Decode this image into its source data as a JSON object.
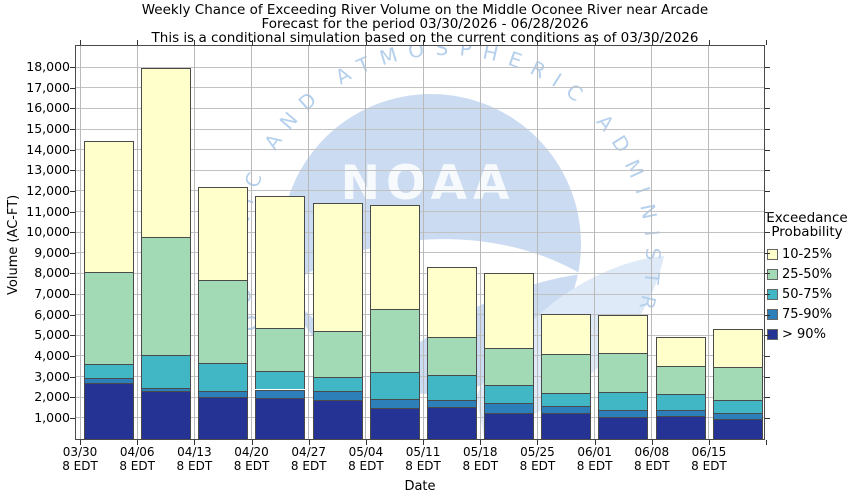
{
  "page": {
    "background": "#ffffff",
    "grid_color": "#c2c2c2",
    "frame_color": "#4a4a4a"
  },
  "chart_data": {
    "type": "stacked-bar",
    "title_lines": [
      "Weekly Chance of Exceeding River Volume on the Middle Oconee River near Arcade",
      "Forecast for the period 03/30/2026 - 06/28/2026",
      "This is a conditional simulation based on the current conditions as of 03/30/2026"
    ],
    "xlabel": "Date",
    "ylabel": "Volume (AC-FT)",
    "ylim": [
      0,
      19000
    ],
    "yticks": [
      1000,
      2000,
      3000,
      4000,
      5000,
      6000,
      7000,
      8000,
      9000,
      10000,
      11000,
      12000,
      13000,
      14000,
      15000,
      16000,
      17000,
      18000
    ],
    "ytick_labels": [
      "1,000",
      "2,000",
      "3,000",
      "4,000",
      "5,000",
      "6,000",
      "7,000",
      "8,000",
      "9,000",
      "10,000",
      "11,000",
      "12,000",
      "13,000",
      "14,000",
      "15,000",
      "16,000",
      "17,000",
      "18,000"
    ],
    "categories": [
      [
        "03/30",
        "8 EDT"
      ],
      [
        "04/06",
        "8 EDT"
      ],
      [
        "04/13",
        "8 EDT"
      ],
      [
        "04/20",
        "8 EDT"
      ],
      [
        "04/27",
        "8 EDT"
      ],
      [
        "05/04",
        "8 EDT"
      ],
      [
        "05/11",
        "8 EDT"
      ],
      [
        "05/18",
        "8 EDT"
      ],
      [
        "05/25",
        "8 EDT"
      ],
      [
        "06/01",
        "8 EDT"
      ],
      [
        "06/08",
        "8 EDT"
      ],
      [
        "06/15",
        "8 EDT"
      ]
    ],
    "bands": [
      {
        "name": "> 90%",
        "color": "#253494"
      },
      {
        "name": "75-90%",
        "color": "#2C7FB8"
      },
      {
        "name": "50-75%",
        "color": "#41B6C4"
      },
      {
        "name": "25-50%",
        "color": "#A1DAB4"
      },
      {
        "name": "10-25%",
        "color": "#FFFFCC"
      }
    ],
    "bars": [
      {
        "date": "03/30",
        "cumulative_tops": [
          2700,
          2950,
          3650,
          8100,
          14450
        ]
      },
      {
        "date": "04/06",
        "cumulative_tops": [
          2350,
          2450,
          4050,
          9800,
          18000
        ]
      },
      {
        "date": "04/13",
        "cumulative_tops": [
          2050,
          2350,
          3700,
          7700,
          12200
        ]
      },
      {
        "date": "04/20",
        "cumulative_tops": [
          2000,
          2400,
          3300,
          5400,
          11800
        ]
      },
      {
        "date": "04/27",
        "cumulative_tops": [
          1900,
          2350,
          3000,
          5250,
          11450
        ]
      },
      {
        "date": "05/04",
        "cumulative_tops": [
          1500,
          1950,
          3250,
          6300,
          11350
        ]
      },
      {
        "date": "05/11",
        "cumulative_tops": [
          1550,
          1900,
          3100,
          4950,
          8350
        ]
      },
      {
        "date": "05/18",
        "cumulative_tops": [
          1250,
          1750,
          2600,
          4400,
          8050
        ]
      },
      {
        "date": "05/25",
        "cumulative_tops": [
          1250,
          1600,
          2250,
          4100,
          6050
        ]
      },
      {
        "date": "06/01",
        "cumulative_tops": [
          1050,
          1430,
          2270,
          4150,
          6000
        ]
      },
      {
        "date": "06/08",
        "cumulative_tops": [
          1100,
          1400,
          2200,
          3550,
          4950
        ]
      },
      {
        "date": "06/15",
        "cumulative_tops": [
          950,
          1270,
          1900,
          3500,
          5350
        ]
      }
    ],
    "legend": {
      "title_lines": [
        "Exceedance",
        "Probability"
      ],
      "entries": [
        {
          "label": "10-25%",
          "color": "#FFFFCC"
        },
        {
          "label": "25-50%",
          "color": "#A1DAB4"
        },
        {
          "label": "50-75%",
          "color": "#41B6C4"
        },
        {
          "label": "75-90%",
          "color": "#2C7FB8"
        },
        {
          "label": "> 90%",
          "color": "#253494"
        }
      ]
    },
    "watermark": {
      "arc_text": "OCEANIC AND ATMOSPHERIC ADMINISTRATION",
      "center_text": "NOAA",
      "circle_color": "#cbdcf2",
      "wing_color": "#dfeaf8",
      "text_color": "#b5d0ec"
    },
    "layout_hints": {
      "grid": "on",
      "legend_position": "right"
    }
  }
}
